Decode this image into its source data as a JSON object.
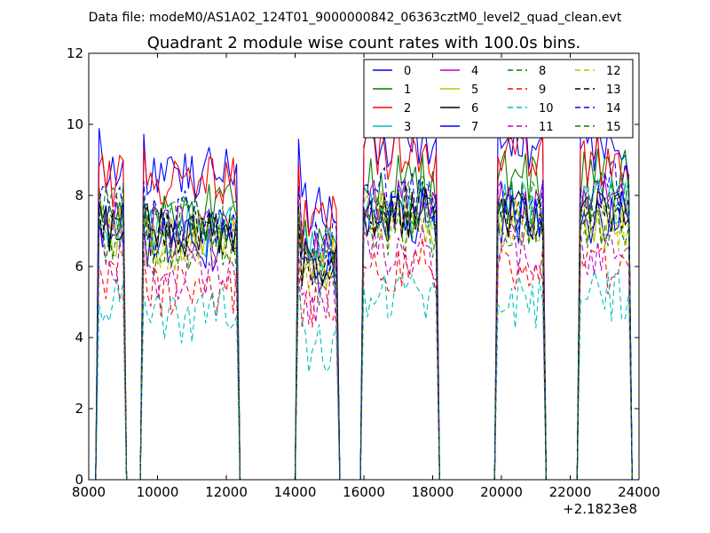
{
  "chart_data": {
    "type": "line",
    "header": "Data file: modeM0/AS1A02_124T01_9000000842_06363cztM0_level2_quad_clean.evt",
    "title": "Quadrant 2 module wise count rates with 100.0s bins.",
    "xlabel": "",
    "ylabel": "",
    "x_offset_label": "+2.1823e8",
    "xlim": [
      8000,
      24000
    ],
    "ylim": [
      0,
      12
    ],
    "x_ticks": [
      "8000",
      "10000",
      "12000",
      "14000",
      "16000",
      "18000",
      "20000",
      "22000",
      "24000"
    ],
    "y_ticks": [
      "0",
      "2",
      "4",
      "6",
      "8",
      "10",
      "12"
    ],
    "grid": false,
    "legend_position": "top-right",
    "segments": [
      {
        "start": 8300,
        "end": 9000
      },
      {
        "start": 9600,
        "end": 12300
      },
      {
        "start": 14100,
        "end": 15200
      },
      {
        "start": 16000,
        "end": 18100
      },
      {
        "start": 19900,
        "end": 21200
      },
      {
        "start": 22300,
        "end": 23700
      }
    ],
    "gap_x": [
      9100,
      9500,
      12350,
      14000,
      15300,
      15900,
      18200,
      19800,
      21300,
      22200
    ],
    "series": [
      {
        "name": "0",
        "color": "#0000ff",
        "dashed": false,
        "values": [
          10.4,
          8.8,
          8.6,
          7.6,
          9.6,
          9.5,
          9.2,
          8.4
        ]
      },
      {
        "name": "1",
        "color": "#008000",
        "dashed": false,
        "values": [
          8.8,
          7.6,
          7.6,
          6.6,
          8.4,
          8.5,
          8.6,
          7.2
        ]
      },
      {
        "name": "2",
        "color": "#ff0000",
        "dashed": false,
        "values": [
          9.6,
          8.4,
          8.4,
          7.2,
          9.2,
          9.2,
          9.0,
          8.1
        ]
      },
      {
        "name": "3",
        "color": "#00bfbf",
        "dashed": false,
        "values": [
          8.0,
          7.0,
          7.0,
          6.4,
          7.6,
          7.6,
          7.8,
          7.0
        ]
      },
      {
        "name": "4",
        "color": "#bf00bf",
        "dashed": false,
        "values": [
          8.2,
          7.2,
          7.0,
          6.2,
          7.8,
          7.6,
          7.8,
          7.0
        ]
      },
      {
        "name": "5",
        "color": "#bfbf00",
        "dashed": false,
        "values": [
          8.0,
          7.0,
          6.8,
          6.0,
          7.4,
          7.2,
          7.4,
          6.8
        ]
      },
      {
        "name": "6",
        "color": "#000000",
        "dashed": false,
        "values": [
          8.2,
          7.2,
          7.0,
          6.2,
          7.6,
          7.5,
          7.6,
          7.0
        ]
      },
      {
        "name": "7",
        "color": "#0000ff",
        "dashed": false,
        "values": [
          8.0,
          7.0,
          6.6,
          5.8,
          7.4,
          7.2,
          7.4,
          6.6
        ]
      },
      {
        "name": "8",
        "color": "#008000",
        "dashed": true,
        "values": [
          7.8,
          6.8,
          6.4,
          5.6,
          7.0,
          7.0,
          7.2,
          6.6
        ]
      },
      {
        "name": "9",
        "color": "#ff0000",
        "dashed": true,
        "values": [
          6.8,
          5.6,
          5.4,
          4.8,
          6.0,
          5.8,
          6.0,
          5.8
        ]
      },
      {
        "name": "10",
        "color": "#00bfbf",
        "dashed": true,
        "values": [
          5.8,
          5.0,
          4.6,
          3.8,
          5.2,
          5.0,
          5.2,
          5.0
        ]
      },
      {
        "name": "11",
        "color": "#bf00bf",
        "dashed": true,
        "values": [
          7.2,
          6.2,
          5.8,
          5.0,
          6.4,
          6.2,
          6.4,
          6.2
        ]
      },
      {
        "name": "12",
        "color": "#bfbf00",
        "dashed": true,
        "values": [
          7.8,
          7.0,
          6.6,
          5.8,
          7.2,
          7.0,
          7.2,
          6.8
        ]
      },
      {
        "name": "13",
        "color": "#000000",
        "dashed": true,
        "values": [
          8.2,
          7.4,
          7.0,
          6.2,
          7.6,
          7.4,
          7.6,
          7.2
        ]
      },
      {
        "name": "14",
        "color": "#0000ff",
        "dashed": true,
        "values": [
          8.6,
          7.8,
          7.4,
          6.6,
          8.0,
          7.8,
          8.2,
          7.6
        ]
      },
      {
        "name": "15",
        "color": "#008000",
        "dashed": true,
        "values": [
          8.4,
          7.6,
          7.2,
          6.4,
          7.8,
          7.6,
          8.0,
          7.4
        ]
      }
    ]
  }
}
